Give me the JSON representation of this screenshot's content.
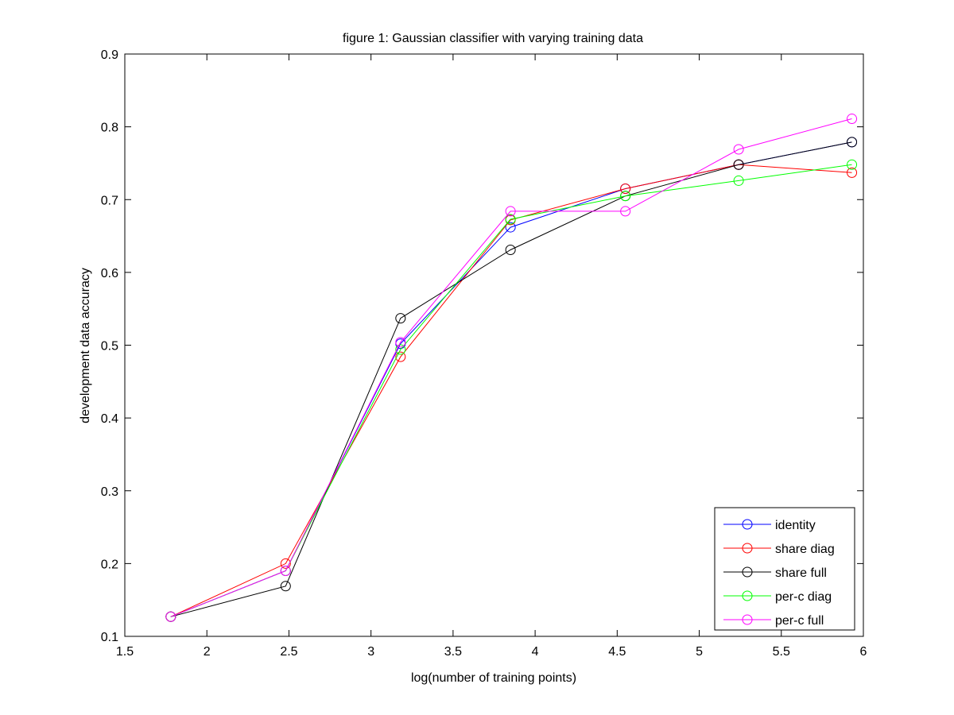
{
  "chart_data": {
    "type": "line",
    "title": "figure 1: Gaussian classifier with varying training data",
    "xlabel": "log(number of training points)",
    "ylabel": "development data accuracy",
    "xlim": [
      1.5,
      6
    ],
    "ylim": [
      0.1,
      0.9
    ],
    "xticks": [
      1.5,
      2,
      2.5,
      3,
      3.5,
      4,
      4.5,
      5,
      5.5,
      6
    ],
    "yticks": [
      0.1,
      0.2,
      0.3,
      0.4,
      0.5,
      0.6,
      0.7,
      0.8,
      0.9
    ],
    "grid": false,
    "legend": "bottom-right",
    "marker": "circle",
    "x": [
      1.78,
      2.48,
      3.18,
      3.85,
      4.55,
      5.24,
      5.93
    ],
    "series": [
      {
        "name": "identity",
        "color": "#0000ff",
        "values": [
          0.127,
          0.19,
          0.502,
          0.662,
          0.715,
          0.748,
          0.779
        ]
      },
      {
        "name": "share diag",
        "color": "#ff0000",
        "values": [
          0.127,
          0.2,
          0.484,
          0.672,
          0.715,
          0.748,
          0.737
        ]
      },
      {
        "name": "share full",
        "color": "#000000",
        "values": [
          0.127,
          0.169,
          0.537,
          0.631,
          0.705,
          0.748,
          0.779
        ]
      },
      {
        "name": "per-c diag",
        "color": "#00ff00",
        "values": [
          0.127,
          0.19,
          0.494,
          0.673,
          0.705,
          0.726,
          0.748
        ]
      },
      {
        "name": "per-c full",
        "color": "#ff00ff",
        "values": [
          0.127,
          0.19,
          0.504,
          0.684,
          0.684,
          0.769,
          0.811
        ]
      }
    ]
  }
}
